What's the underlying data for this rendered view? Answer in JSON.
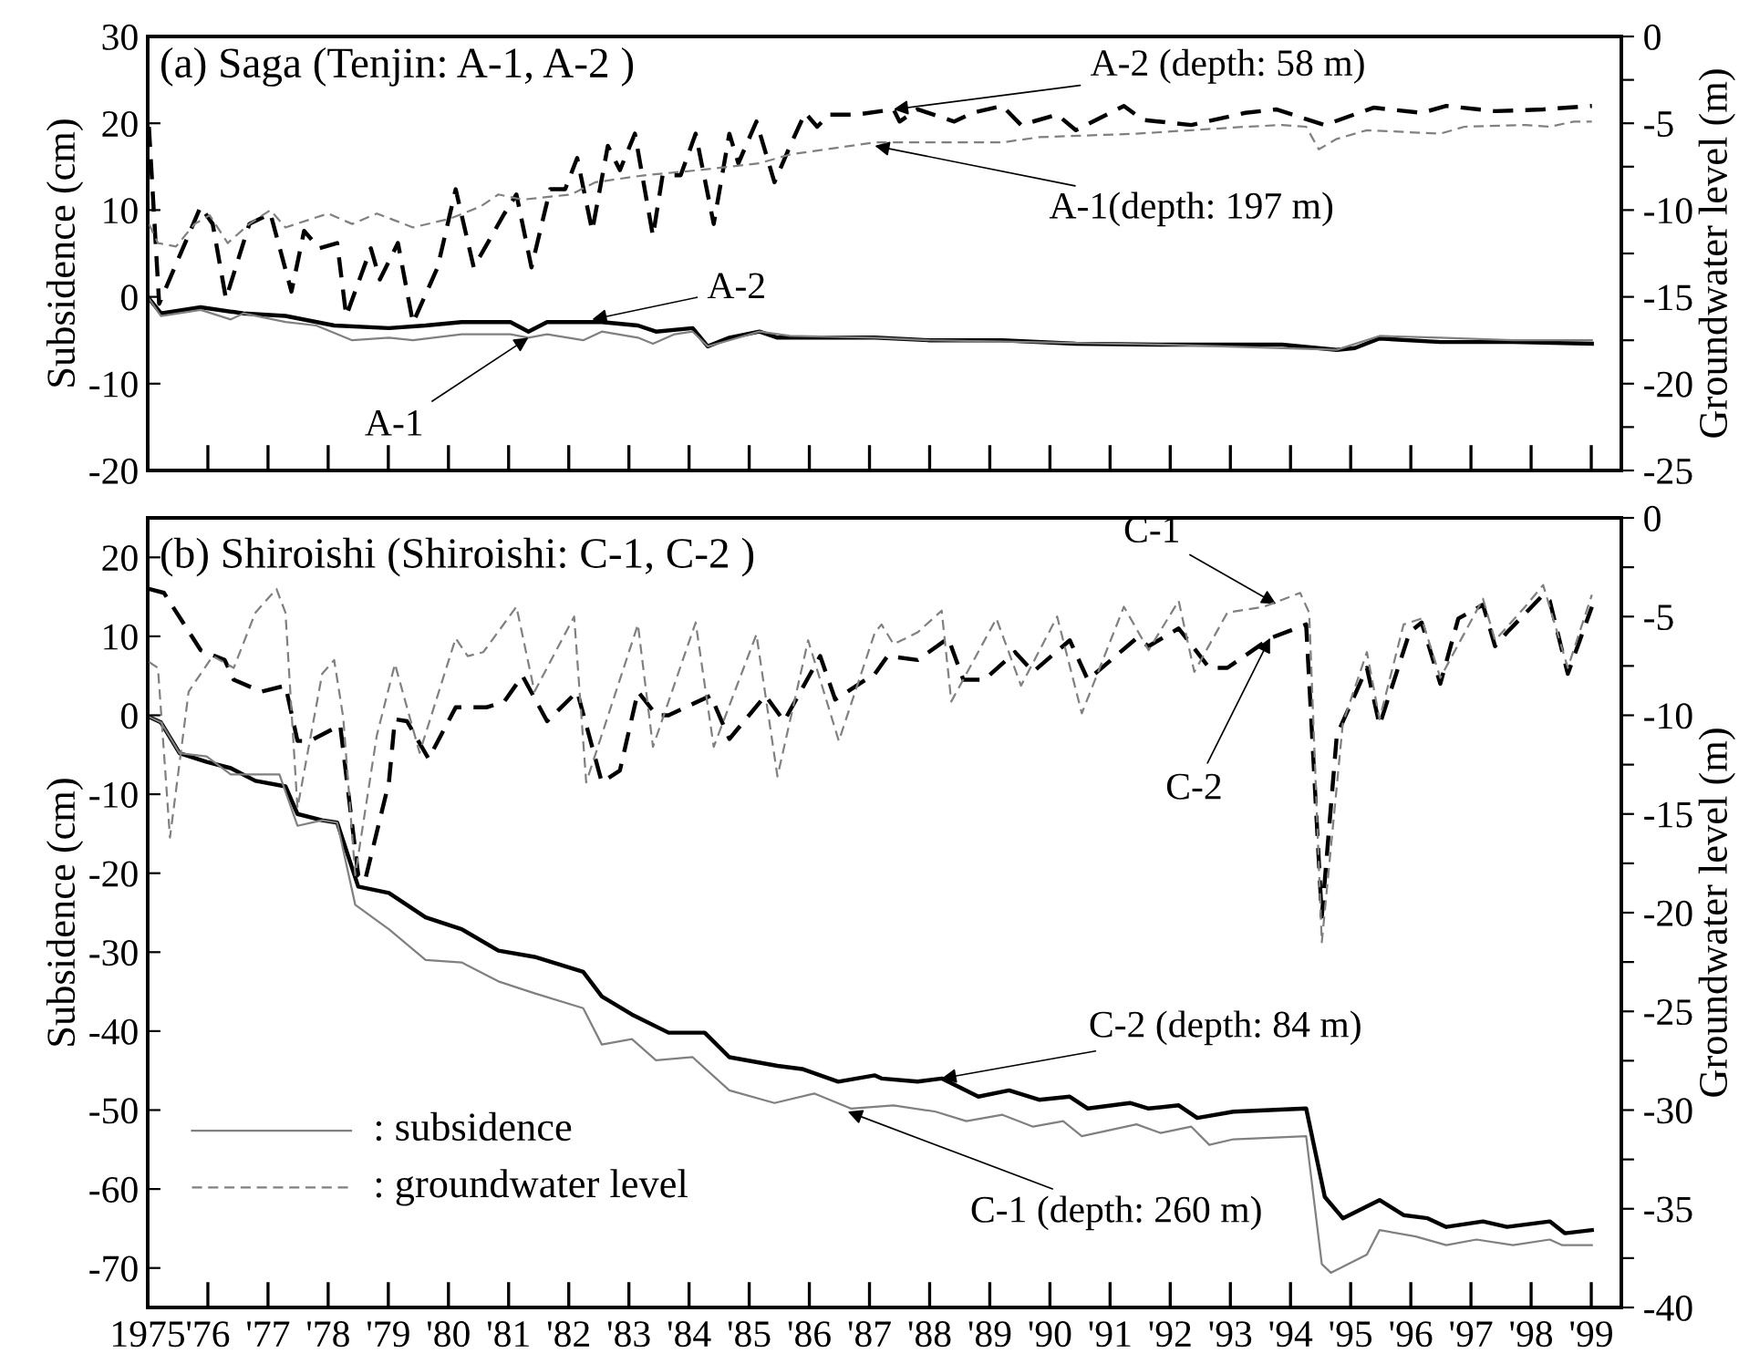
{
  "chart_data": [
    {
      "type": "line",
      "title": "(a) Saga (Tenjin: A-1, A-2 )",
      "ylabel": "Subsidence (cm)",
      "y2label": "Groundwater level (m)",
      "xlim": [
        1975,
        1999.5
      ],
      "xticks": [
        {
          "value": 1975,
          "label": null
        },
        {
          "value": 1976,
          "label": null
        },
        {
          "value": 1977,
          "label": null
        },
        {
          "value": 1978,
          "label": null
        },
        {
          "value": 1979,
          "label": null
        },
        {
          "value": 1980,
          "label": null
        },
        {
          "value": 1981,
          "label": null
        },
        {
          "value": 1982,
          "label": null
        },
        {
          "value": 1983,
          "label": null
        },
        {
          "value": 1984,
          "label": null
        },
        {
          "value": 1985,
          "label": null
        },
        {
          "value": 1986,
          "label": null
        },
        {
          "value": 1987,
          "label": null
        },
        {
          "value": 1988,
          "label": null
        },
        {
          "value": 1989,
          "label": null
        },
        {
          "value": 1990,
          "label": null
        },
        {
          "value": 1991,
          "label": null
        },
        {
          "value": 1992,
          "label": null
        },
        {
          "value": 1993,
          "label": null
        },
        {
          "value": 1994,
          "label": null
        },
        {
          "value": 1995,
          "label": null
        },
        {
          "value": 1996,
          "label": null
        },
        {
          "value": 1997,
          "label": null
        },
        {
          "value": 1998,
          "label": null
        },
        {
          "value": 1999,
          "label": null
        }
      ],
      "ylim": [
        -20,
        30
      ],
      "yticks": [
        -20,
        -10,
        0,
        10,
        20,
        30
      ],
      "y2lim": [
        -25,
        0
      ],
      "y2ticks": [
        -25,
        {
          "value": -22.5,
          "label": null
        },
        -20,
        {
          "value": -17.5,
          "label": null
        },
        -15,
        {
          "value": -12.5,
          "label": null
        },
        -10,
        {
          "value": -7.5,
          "label": null
        },
        -5,
        {
          "value": -2.5,
          "label": null
        },
        0
      ],
      "tick_labels": "y",
      "grid": false,
      "marker": "none",
      "series": [
        {
          "color": "#000000",
          "line_style": "dashed",
          "axis": "y2",
          "x": [
            1975.02,
            1975.19,
            1975.88,
            1976.08,
            1976.3,
            1976.69,
            1977.04,
            1977.39,
            1977.6,
            1977.85,
            1978.15,
            1978.3,
            1978.71,
            1978.86,
            1979.16,
            1979.41,
            1979.82,
            1980.12,
            1980.42,
            1980.93,
            1981.13,
            1981.38,
            1981.69,
            1981.94,
            1982.14,
            1982.39,
            1982.65,
            1982.85,
            1983.1,
            1983.4,
            1983.56,
            1983.86,
            1984.11,
            1984.41,
            1984.67,
            1984.82,
            1985.12,
            1985.42,
            1985.68,
            1985.93,
            1986.13,
            1986.33,
            1986.79,
            1987.4,
            1987.5,
            1987.8,
            1988.41,
            1988.71,
            1989.21,
            1989.52,
            1990.12,
            1990.43,
            1991.23,
            1991.54,
            1992.35,
            1993.25,
            1993.76,
            1994.57,
            1995.38,
            1996.18,
            1996.59,
            1997.4,
            1998.2,
            1999.01
          ],
          "values": [
            -5.2,
            -15.4,
            -9.8,
            -10.8,
            -15.1,
            -10.8,
            -10.2,
            -14.7,
            -11.2,
            -12.2,
            -11.9,
            -16.1,
            -12.2,
            -14.0,
            -11.9,
            -16.5,
            -13.3,
            -8.8,
            -13.3,
            -10.2,
            -9.1,
            -13.3,
            -8.8,
            -8.8,
            -7.0,
            -11.2,
            -6.3,
            -7.7,
            -5.6,
            -11.5,
            -8.0,
            -8.0,
            -5.6,
            -10.8,
            -5.6,
            -7.3,
            -4.9,
            -8.4,
            -6.3,
            -4.4,
            -5.2,
            -4.5,
            -4.5,
            -4.2,
            -4.9,
            -4.2,
            -4.9,
            -4.4,
            -4.0,
            -5.1,
            -4.5,
            -5.4,
            -4.0,
            -4.8,
            -5.1,
            -4.4,
            -4.2,
            -5.1,
            -4.1,
            -4.4,
            -4.0,
            -4.3,
            -4.2,
            -4.0
          ]
        },
        {
          "color": "#808080",
          "line_style": "dashed",
          "axis": "y2",
          "x": [
            1975.02,
            1975.17,
            1975.47,
            1975.78,
            1976.03,
            1976.33,
            1976.69,
            1977.04,
            1977.29,
            1978.0,
            1978.4,
            1978.81,
            1979.41,
            1980.02,
            1980.53,
            1980.83,
            1981.23,
            1982.04,
            1982.44,
            1983.25,
            1984.16,
            1985.17,
            1985.68,
            1986.28,
            1987.09,
            1988.0,
            1989.21,
            1989.82,
            1991.44,
            1993.25,
            1993.86,
            1994.26,
            1994.47,
            1994.77,
            1995.27,
            1996.49,
            1996.89,
            1997.9,
            1998.31,
            1998.71,
            1999.01
          ],
          "values": [
            -10.8,
            -11.9,
            -12.1,
            -10.8,
            -10.3,
            -11.9,
            -10.8,
            -10.0,
            -11.0,
            -10.2,
            -10.8,
            -10.2,
            -11.0,
            -10.5,
            -9.8,
            -9.1,
            -9.4,
            -9.1,
            -8.4,
            -8.0,
            -7.7,
            -7.3,
            -6.8,
            -6.5,
            -6.1,
            -6.1,
            -6.1,
            -5.8,
            -5.6,
            -5.2,
            -5.1,
            -5.2,
            -6.5,
            -5.9,
            -5.4,
            -5.6,
            -5.2,
            -5.1,
            -5.2,
            -4.9,
            -4.9
          ]
        },
        {
          "color": "#000000",
          "line_style": "solid",
          "x": [
            1975.0,
            1975.22,
            1975.88,
            1976.59,
            1977.29,
            1978.1,
            1979.01,
            1979.62,
            1980.22,
            1981.03,
            1981.33,
            1981.64,
            1982.55,
            1983.15,
            1983.45,
            1984.06,
            1984.31,
            1984.67,
            1985.17,
            1985.47,
            1986.08,
            1987.09,
            1988.0,
            1989.21,
            1990.43,
            1991.84,
            1993.86,
            1994.77,
            1995.07,
            1995.48,
            1996.49,
            1997.7,
            1999.01
          ],
          "values": [
            0.0,
            -1.9,
            -1.2,
            -1.9,
            -2.2,
            -3.3,
            -3.6,
            -3.3,
            -2.9,
            -2.9,
            -4.0,
            -2.9,
            -2.9,
            -3.3,
            -4.0,
            -3.6,
            -5.7,
            -4.7,
            -4.0,
            -4.7,
            -4.7,
            -4.7,
            -5.0,
            -5.0,
            -5.4,
            -5.5,
            -5.5,
            -6.1,
            -5.9,
            -4.8,
            -5.2,
            -5.2,
            -5.4
          ]
        },
        {
          "color": "#808080",
          "line_style": "solid",
          "x": [
            1975.0,
            1975.22,
            1975.88,
            1976.38,
            1976.59,
            1977.29,
            1977.8,
            1978.4,
            1979.01,
            1979.41,
            1980.22,
            1981.03,
            1981.33,
            1981.64,
            1982.24,
            1982.55,
            1983.15,
            1983.4,
            1983.76,
            1984.06,
            1984.31,
            1984.67,
            1985.17,
            1985.68,
            1987.09,
            1988.0,
            1991.84,
            1994.77,
            1995.48,
            1996.49,
            1997.7,
            1999.01
          ],
          "values": [
            0.0,
            -2.2,
            -1.5,
            -2.6,
            -1.9,
            -2.9,
            -3.3,
            -5.0,
            -4.7,
            -5.0,
            -4.3,
            -4.3,
            -4.7,
            -4.3,
            -5.0,
            -4.0,
            -4.7,
            -5.4,
            -4.3,
            -4.0,
            -5.7,
            -5.0,
            -4.0,
            -4.5,
            -4.7,
            -5.0,
            -5.5,
            -6.1,
            -4.5,
            -4.7,
            -5.0,
            -5.0
          ]
        }
      ],
      "annotations": [
        {
          "text": "A-2",
          "x": 1982.39,
          "y": -2.6
        },
        {
          "text": "A-1",
          "x": 1981.33,
          "y": -4.7
        },
        {
          "text": "A-2 (depth: 58 m)",
          "x": 1987.4,
          "y": 21.6
        },
        {
          "text": "A-1(depth: 197 m)",
          "x": 1987.09,
          "y": 17.4
        }
      ]
    },
    {
      "type": "line",
      "title": "(b) Shiroishi (Shiroishi: C-1, C-2 )",
      "ylabel": "Subsidence (cm)",
      "y2label": "Groundwater level (m)",
      "xlim": [
        1975,
        1999.5
      ],
      "xticks": [
        1975,
        {
          "value": 1976,
          "label": "'76"
        },
        {
          "value": 1977,
          "label": "'77"
        },
        {
          "value": 1978,
          "label": "'78"
        },
        {
          "value": 1979,
          "label": "'79"
        },
        {
          "value": 1980,
          "label": "'80"
        },
        {
          "value": 1981,
          "label": "'81"
        },
        {
          "value": 1982,
          "label": "'82"
        },
        {
          "value": 1983,
          "label": "'83"
        },
        {
          "value": 1984,
          "label": "'84"
        },
        {
          "value": 1985,
          "label": "'85"
        },
        {
          "value": 1986,
          "label": "'86"
        },
        {
          "value": 1987,
          "label": "'87"
        },
        {
          "value": 1988,
          "label": "'88"
        },
        {
          "value": 1989,
          "label": "'89"
        },
        {
          "value": 1990,
          "label": "'90"
        },
        {
          "value": 1991,
          "label": "'91"
        },
        {
          "value": 1992,
          "label": "'92"
        },
        {
          "value": 1993,
          "label": "'93"
        },
        {
          "value": 1994,
          "label": "'94"
        },
        {
          "value": 1995,
          "label": "'95"
        },
        {
          "value": 1996,
          "label": "'96"
        },
        {
          "value": 1997,
          "label": "'97"
        },
        {
          "value": 1998,
          "label": "'98"
        },
        {
          "value": 1999,
          "label": "'99"
        }
      ],
      "ylim": [
        -75,
        25
      ],
      "yticks": [
        -70,
        -60,
        -50,
        -40,
        -30,
        -20,
        -10,
        0,
        10,
        20
      ],
      "y2lim": [
        -40,
        0
      ],
      "y2ticks": [
        -40,
        {
          "value": -37.5,
          "label": null
        },
        -35,
        {
          "value": -32.5,
          "label": null
        },
        -30,
        {
          "value": -27.5,
          "label": null
        },
        -25,
        {
          "value": -22.5,
          "label": null
        },
        -20,
        {
          "value": -17.5,
          "label": null
        },
        -15,
        {
          "value": -12.5,
          "label": null
        },
        -10,
        {
          "value": -7.5,
          "label": null
        },
        -5,
        {
          "value": -2.5,
          "label": null
        },
        0
      ],
      "grid": false,
      "marker": "none",
      "series": [
        {
          "color": "#000000",
          "line_style": "dashed",
          "axis": "y2",
          "x": [
            1975.02,
            1975.27,
            1975.88,
            1976.28,
            1976.43,
            1976.89,
            1977.29,
            1977.49,
            1977.7,
            1978.2,
            1978.5,
            1978.61,
            1979.01,
            1979.11,
            1979.31,
            1979.67,
            1980.12,
            1980.63,
            1980.93,
            1981.23,
            1981.64,
            1982.14,
            1982.55,
            1982.85,
            1983.15,
            1983.46,
            1983.66,
            1984.36,
            1984.67,
            1985.27,
            1985.58,
            1986.18,
            1986.43,
            1987.09,
            1987.3,
            1987.8,
            1988.31,
            1988.56,
            1988.91,
            1989.42,
            1989.72,
            1990.33,
            1990.63,
            1991.44,
            1991.64,
            1992.14,
            1992.65,
            1992.95,
            1993.66,
            1994.26,
            1994.52,
            1994.77,
            1995.27,
            1995.48,
            1995.98,
            1996.18,
            1996.49,
            1996.79,
            1997.2,
            1997.4,
            1997.6,
            1998.2,
            1998.31,
            1998.61,
            1999.01
          ],
          "values": [
            -3.6,
            -3.8,
            -6.7,
            -7.2,
            -8.2,
            -8.8,
            -8.5,
            -11.3,
            -11.3,
            -10.5,
            -18.1,
            -18.4,
            -13.4,
            -10.2,
            -10.3,
            -12.2,
            -9.6,
            -9.6,
            -9.3,
            -8.0,
            -10.3,
            -8.8,
            -13.4,
            -12.8,
            -8.8,
            -10.0,
            -10.0,
            -9.0,
            -11.2,
            -9.0,
            -10.3,
            -7.0,
            -9.2,
            -7.9,
            -7.0,
            -7.2,
            -6.1,
            -8.2,
            -8.2,
            -6.8,
            -7.8,
            -6.2,
            -8.2,
            -6.1,
            -6.5,
            -5.6,
            -7.6,
            -7.6,
            -6.1,
            -5.4,
            -20.2,
            -11.0,
            -7.6,
            -10.5,
            -5.8,
            -5.3,
            -8.4,
            -5.1,
            -4.4,
            -6.5,
            -5.8,
            -3.9,
            -4.2,
            -7.9,
            -4.5
          ]
        },
        {
          "color": "#808080",
          "line_style": "dashed",
          "axis": "y2",
          "x": [
            1975.02,
            1975.17,
            1975.37,
            1975.68,
            1976.08,
            1976.43,
            1976.79,
            1977.14,
            1977.29,
            1977.49,
            1977.9,
            1978.1,
            1978.25,
            1978.45,
            1978.81,
            1979.11,
            1979.52,
            1980.12,
            1980.32,
            1980.58,
            1981.13,
            1981.43,
            1982.09,
            1982.29,
            1983.15,
            1983.4,
            1984.11,
            1984.41,
            1985.12,
            1985.47,
            1985.98,
            1986.49,
            1987.09,
            1987.2,
            1987.4,
            1987.8,
            1988.2,
            1988.36,
            1989.11,
            1989.52,
            1990.12,
            1990.53,
            1991.23,
            1991.64,
            1992.14,
            1992.4,
            1992.95,
            1993.56,
            1994.16,
            1994.31,
            1994.52,
            1994.87,
            1995.27,
            1995.48,
            1995.88,
            1996.18,
            1996.49,
            1997.2,
            1997.4,
            1997.9,
            1998.2,
            1998.61,
            1999.01
          ],
          "values": [
            -7.3,
            -7.6,
            -16.2,
            -8.8,
            -7.0,
            -7.6,
            -4.8,
            -3.6,
            -4.8,
            -14.7,
            -7.9,
            -7.2,
            -10.1,
            -18.1,
            -11.0,
            -7.4,
            -11.9,
            -6.1,
            -7.0,
            -6.8,
            -4.5,
            -8.8,
            -5.0,
            -13.4,
            -5.4,
            -11.6,
            -5.3,
            -11.6,
            -5.9,
            -13.1,
            -6.2,
            -11.3,
            -5.8,
            -5.4,
            -6.4,
            -5.8,
            -4.7,
            -9.3,
            -5.1,
            -8.5,
            -5.0,
            -9.9,
            -4.5,
            -6.7,
            -4.2,
            -7.8,
            -4.8,
            -4.5,
            -3.8,
            -4.8,
            -21.5,
            -10.4,
            -6.8,
            -10.2,
            -5.4,
            -5.1,
            -8.1,
            -4.1,
            -6.2,
            -4.5,
            -3.4,
            -7.6,
            -3.9
          ]
        },
        {
          "color": "#000000",
          "line_style": "solid",
          "x": [
            1975.02,
            1975.22,
            1975.53,
            1975.98,
            1976.38,
            1976.79,
            1977.29,
            1977.49,
            1977.9,
            1978.15,
            1978.5,
            1979.01,
            1979.62,
            1980.22,
            1980.83,
            1981.43,
            1982.24,
            1982.55,
            1983.05,
            1983.66,
            1984.26,
            1984.67,
            1985.47,
            1985.88,
            1986.48,
            1987.09,
            1987.2,
            1987.8,
            1988.2,
            1988.81,
            1989.32,
            1989.82,
            1990.33,
            1990.63,
            1991.33,
            1991.64,
            1992.14,
            1992.45,
            1993.05,
            1994.26,
            1994.57,
            1994.87,
            1995.48,
            1995.88,
            1996.28,
            1996.59,
            1997.2,
            1997.6,
            1998.31,
            1998.56,
            1999.01
          ],
          "values": [
            -0.2,
            -0.9,
            -4.8,
            -5.9,
            -6.7,
            -8.3,
            -9.0,
            -12.5,
            -13.3,
            -13.6,
            -21.7,
            -22.5,
            -25.6,
            -27.1,
            -29.8,
            -30.6,
            -32.5,
            -35.6,
            -37.9,
            -40.2,
            -40.2,
            -43.3,
            -44.4,
            -44.8,
            -46.4,
            -45.6,
            -46.0,
            -46.4,
            -46.0,
            -48.3,
            -47.5,
            -48.7,
            -48.3,
            -49.8,
            -49.1,
            -49.8,
            -49.4,
            -51.0,
            -50.2,
            -49.8,
            -61.0,
            -63.7,
            -61.4,
            -63.3,
            -63.7,
            -64.8,
            -64.1,
            -64.8,
            -64.1,
            -65.6,
            -65.2
          ]
        },
        {
          "color": "#808080",
          "line_style": "solid",
          "x": [
            1975.02,
            1975.22,
            1975.53,
            1975.98,
            1976.38,
            1977.19,
            1977.49,
            1977.9,
            1978.15,
            1978.45,
            1979.01,
            1979.62,
            1980.22,
            1980.83,
            1981.43,
            1982.24,
            1982.55,
            1983.05,
            1983.45,
            1984.06,
            1984.67,
            1985.42,
            1986.08,
            1986.69,
            1987.4,
            1988.1,
            1988.61,
            1989.21,
            1989.72,
            1990.22,
            1990.53,
            1991.44,
            1991.84,
            1992.35,
            1992.65,
            1993.05,
            1994.26,
            1994.52,
            1994.67,
            1995.27,
            1995.48,
            1996.08,
            1996.59,
            1997.09,
            1997.7,
            1998.31,
            1998.51,
            1999.01
          ],
          "values": [
            -0.2,
            -0.9,
            -4.8,
            -5.2,
            -7.5,
            -7.5,
            -14.0,
            -13.3,
            -13.6,
            -24.0,
            -27.1,
            -31.0,
            -31.3,
            -33.7,
            -35.2,
            -37.1,
            -41.7,
            -41.0,
            -43.7,
            -43.3,
            -47.5,
            -49.1,
            -47.9,
            -49.8,
            -49.4,
            -50.2,
            -51.4,
            -50.6,
            -52.1,
            -51.4,
            -53.3,
            -51.8,
            -52.9,
            -52.1,
            -54.4,
            -53.7,
            -53.3,
            -69.5,
            -70.6,
            -68.3,
            -65.2,
            -66.0,
            -67.1,
            -66.4,
            -67.1,
            -66.4,
            -67.1,
            -67.1
          ]
        }
      ],
      "annotations": [
        ": subsidence",
        ": groundwater level",
        {
          "text": "C-1",
          "x": 1993.76,
          "y": 14.1
        },
        {
          "text": "C-2",
          "x": 1993.66,
          "y": 9.8
        },
        {
          "text": "C-2 (depth: 84 m)",
          "x": 1988.2,
          "y": -46.0
        },
        {
          "text": "C-1 (depth: 260 m)",
          "x": 1986.64,
          "y": -50.2
        }
      ]
    }
  ]
}
